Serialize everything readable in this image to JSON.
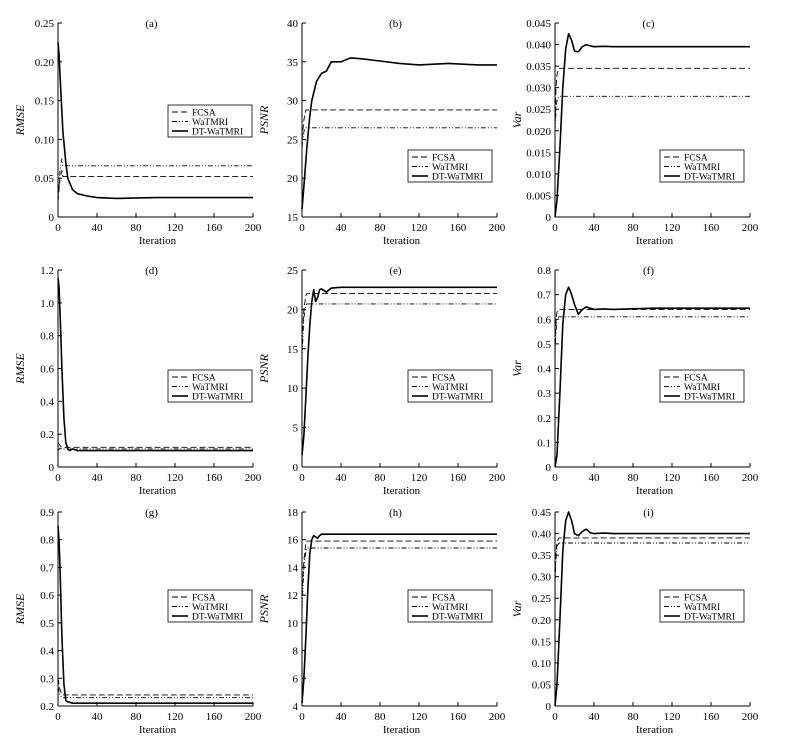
{
  "chart_data": [
    {
      "type": "line",
      "panel": "(a)",
      "ylabel": "RMSE",
      "xlabel": "Iteration",
      "xlim": [
        0,
        200
      ],
      "ylim": [
        0,
        0.25
      ],
      "xticks": [
        "0",
        "40",
        "80",
        "120",
        "160",
        "200"
      ],
      "yticks": [
        "0",
        "0.05",
        "0.10",
        "0.15",
        "0.20",
        "0.25"
      ],
      "legend": "right-middle",
      "grid": false,
      "series": [
        {
          "name": "FCSA",
          "x": [
            0,
            2,
            4,
            5,
            8,
            200
          ],
          "y": [
            0.02,
            0.05,
            0.06,
            0.052,
            0.052,
            0.052
          ]
        },
        {
          "name": "WaTMRI",
          "x": [
            0,
            2,
            4,
            5,
            8,
            200
          ],
          "y": [
            0.02,
            0.06,
            0.075,
            0.066,
            0.066,
            0.066
          ]
        },
        {
          "name": "DT-WaTMRI",
          "x": [
            0,
            1,
            3,
            5,
            8,
            10,
            15,
            20,
            30,
            40,
            60,
            100,
            150,
            200
          ],
          "y": [
            0.225,
            0.21,
            0.16,
            0.11,
            0.07,
            0.05,
            0.035,
            0.03,
            0.027,
            0.025,
            0.024,
            0.025,
            0.025,
            0.025
          ]
        }
      ]
    },
    {
      "type": "line",
      "panel": "(b)",
      "ylabel": "PSNR",
      "xlabel": "Iteration",
      "xlim": [
        0,
        200
      ],
      "ylim": [
        15,
        40
      ],
      "xticks": [
        "0",
        "40",
        "80",
        "120",
        "160",
        "200"
      ],
      "yticks": [
        "15",
        "20",
        "25",
        "30",
        "35",
        "40"
      ],
      "legend": "bottom-right",
      "grid": false,
      "series": [
        {
          "name": "FCSA",
          "x": [
            0,
            2,
            4,
            5,
            8,
            200
          ],
          "y": [
            25,
            27.5,
            28.8,
            28.8,
            28.8,
            28.8
          ]
        },
        {
          "name": "WaTMRI",
          "x": [
            0,
            2,
            4,
            5,
            8,
            200
          ],
          "y": [
            24,
            26,
            26.5,
            26.5,
            26.5,
            26.5
          ]
        },
        {
          "name": "DT-WaTMRI",
          "x": [
            0,
            2,
            5,
            8,
            10,
            15,
            20,
            25,
            30,
            35,
            40,
            50,
            60,
            80,
            100,
            120,
            150,
            180,
            200
          ],
          "y": [
            16,
            19,
            24,
            28,
            30,
            32.5,
            33.5,
            33.8,
            35,
            35,
            35,
            35.5,
            35.4,
            35.1,
            34.8,
            34.6,
            34.8,
            34.6,
            34.6
          ]
        }
      ]
    },
    {
      "type": "line",
      "panel": "(c)",
      "ylabel": "Var",
      "xlabel": "Iteration",
      "xlim": [
        0,
        200
      ],
      "ylim": [
        0,
        0.045
      ],
      "xticks": [
        "0",
        "40",
        "80",
        "120",
        "160",
        "200"
      ],
      "yticks": [
        "0",
        "0.005",
        "0.010",
        "0.015",
        "0.020",
        "0.025",
        "0.030",
        "0.035",
        "0.040",
        "0.045"
      ],
      "legend": "bottom-right",
      "grid": false,
      "series": [
        {
          "name": "FCSA",
          "x": [
            0,
            1,
            2,
            4,
            5,
            200
          ],
          "y": [
            0.02,
            0.03,
            0.033,
            0.0345,
            0.0345,
            0.0345
          ]
        },
        {
          "name": "WaTMRI",
          "x": [
            0,
            1,
            2,
            4,
            5,
            200
          ],
          "y": [
            0.02,
            0.025,
            0.027,
            0.028,
            0.028,
            0.028
          ]
        },
        {
          "name": "DT-WaTMRI",
          "x": [
            0,
            2,
            5,
            8,
            11,
            14,
            17,
            20,
            24,
            28,
            32,
            36,
            40,
            50,
            60,
            100,
            150,
            200
          ],
          "y": [
            0.0,
            0.004,
            0.016,
            0.03,
            0.039,
            0.0425,
            0.041,
            0.0385,
            0.0383,
            0.0395,
            0.04,
            0.0397,
            0.0395,
            0.0396,
            0.0395,
            0.0395,
            0.0395,
            0.0395
          ]
        }
      ]
    },
    {
      "type": "line",
      "panel": "(d)",
      "ylabel": "RMSE",
      "xlabel": "Iteration",
      "xlim": [
        0,
        200
      ],
      "ylim": [
        0,
        1.2
      ],
      "xticks": [
        "0",
        "40",
        "80",
        "120",
        "160",
        "200"
      ],
      "yticks": [
        "0",
        "0.2",
        "0.4",
        "0.6",
        "0.8",
        "1.0",
        "1.2"
      ],
      "legend": "bottom-right",
      "grid": false,
      "series": [
        {
          "name": "FCSA",
          "x": [
            0,
            2,
            4,
            5,
            8,
            200
          ],
          "y": [
            0.15,
            0.13,
            0.12,
            0.12,
            0.12,
            0.12
          ]
        },
        {
          "name": "WaTMRI",
          "x": [
            0,
            2,
            4,
            5,
            8,
            200
          ],
          "y": [
            0.1,
            0.115,
            0.11,
            0.11,
            0.11,
            0.11
          ]
        },
        {
          "name": "DT-WaTMRI",
          "x": [
            0,
            1,
            2,
            4,
            6,
            8,
            10,
            12,
            15,
            20,
            30,
            40,
            80,
            200
          ],
          "y": [
            1.15,
            1.1,
            0.95,
            0.6,
            0.3,
            0.15,
            0.11,
            0.1,
            0.11,
            0.1,
            0.1,
            0.1,
            0.1,
            0.1
          ]
        }
      ]
    },
    {
      "type": "line",
      "panel": "(e)",
      "ylabel": "PSNR",
      "xlabel": "Iteration",
      "xlim": [
        0,
        200
      ],
      "ylim": [
        0,
        25
      ],
      "xticks": [
        "0",
        "40",
        "80",
        "120",
        "160",
        "200"
      ],
      "yticks": [
        "0",
        "5",
        "10",
        "15",
        "20",
        "25"
      ],
      "legend": "bottom-right",
      "grid": false,
      "series": [
        {
          "name": "FCSA",
          "x": [
            0,
            2,
            4,
            5,
            8,
            200
          ],
          "y": [
            16,
            20,
            21.8,
            22,
            22,
            22
          ]
        },
        {
          "name": "WaTMRI",
          "x": [
            0,
            2,
            4,
            5,
            8,
            200
          ],
          "y": [
            14,
            19,
            20.5,
            20.7,
            20.7,
            20.7
          ]
        },
        {
          "name": "DT-WaTMRI",
          "x": [
            0,
            2,
            4,
            6,
            8,
            10,
            12,
            14,
            16,
            18,
            20,
            25,
            30,
            40,
            60,
            100,
            150,
            200
          ],
          "y": [
            1.5,
            4,
            9,
            14,
            18,
            21,
            22.5,
            21,
            21.5,
            22.5,
            22.6,
            22.2,
            22.7,
            22.8,
            22.8,
            22.8,
            22.8,
            22.8
          ]
        }
      ]
    },
    {
      "type": "line",
      "panel": "(f)",
      "ylabel": "Var",
      "xlabel": "Iteration",
      "xlim": [
        0,
        200
      ],
      "ylim": [
        0,
        0.8
      ],
      "xticks": [
        "0",
        "40",
        "80",
        "120",
        "160",
        "200"
      ],
      "yticks": [
        "0",
        "0.1",
        "0.2",
        "0.3",
        "0.4",
        "0.5",
        "0.6",
        "0.7",
        "0.8"
      ],
      "legend": "bottom-right",
      "grid": false,
      "series": [
        {
          "name": "FCSA",
          "x": [
            0,
            1,
            2,
            4,
            5,
            200
          ],
          "y": [
            0.5,
            0.6,
            0.63,
            0.64,
            0.64,
            0.64
          ]
        },
        {
          "name": "WaTMRI",
          "x": [
            0,
            1,
            2,
            4,
            5,
            200
          ],
          "y": [
            0.45,
            0.55,
            0.6,
            0.61,
            0.61,
            0.61
          ]
        },
        {
          "name": "DT-WaTMRI",
          "x": [
            0,
            2,
            5,
            8,
            11,
            14,
            17,
            20,
            24,
            28,
            32,
            36,
            40,
            50,
            60,
            100,
            150,
            200
          ],
          "y": [
            0.0,
            0.05,
            0.3,
            0.58,
            0.7,
            0.73,
            0.7,
            0.66,
            0.62,
            0.64,
            0.65,
            0.645,
            0.64,
            0.642,
            0.64,
            0.645,
            0.645,
            0.645
          ]
        }
      ]
    },
    {
      "type": "line",
      "panel": "(g)",
      "ylabel": "RMSE",
      "xlabel": "Iteration",
      "xlim": [
        0,
        200
      ],
      "ylim": [
        0.2,
        0.9
      ],
      "xticks": [
        "0",
        "40",
        "80",
        "120",
        "160",
        "200"
      ],
      "yticks": [
        "0.2",
        "0.3",
        "0.4",
        "0.5",
        "0.6",
        "0.7",
        "0.8",
        "0.9"
      ],
      "legend": "bottom-right",
      "grid": false,
      "series": [
        {
          "name": "FCSA",
          "x": [
            0,
            2,
            4,
            5,
            8,
            200
          ],
          "y": [
            0.3,
            0.26,
            0.24,
            0.24,
            0.24,
            0.24
          ]
        },
        {
          "name": "WaTMRI",
          "x": [
            0,
            2,
            4,
            5,
            8,
            200
          ],
          "y": [
            0.27,
            0.24,
            0.23,
            0.23,
            0.23,
            0.23
          ]
        },
        {
          "name": "DT-WaTMRI",
          "x": [
            0,
            1,
            2,
            4,
            6,
            8,
            10,
            15,
            20,
            40,
            80,
            200
          ],
          "y": [
            0.85,
            0.8,
            0.7,
            0.45,
            0.28,
            0.22,
            0.215,
            0.21,
            0.21,
            0.21,
            0.21,
            0.21
          ]
        }
      ]
    },
    {
      "type": "line",
      "panel": "(h)",
      "ylabel": "PSNR",
      "xlabel": "Iteration",
      "xlim": [
        0,
        200
      ],
      "ylim": [
        4,
        18
      ],
      "xticks": [
        "0",
        "40",
        "80",
        "120",
        "160",
        "200"
      ],
      "yticks": [
        "4",
        "6",
        "8",
        "10",
        "12",
        "14",
        "16",
        "18"
      ],
      "legend": "bottom-right",
      "grid": false,
      "series": [
        {
          "name": "FCSA",
          "x": [
            0,
            2,
            4,
            5,
            8,
            200
          ],
          "y": [
            12,
            14.5,
            15.8,
            15.9,
            15.9,
            15.9
          ]
        },
        {
          "name": "WaTMRI",
          "x": [
            0,
            2,
            4,
            5,
            8,
            200
          ],
          "y": [
            11,
            14,
            15.2,
            15.4,
            15.4,
            15.4
          ]
        },
        {
          "name": "DT-WaTMRI",
          "x": [
            0,
            2,
            4,
            6,
            8,
            10,
            12,
            14,
            16,
            18,
            20,
            30,
            40,
            60,
            100,
            150,
            200
          ],
          "y": [
            4.2,
            6,
            9,
            12.5,
            15,
            16,
            16.3,
            16.2,
            16.1,
            16.3,
            16.4,
            16.4,
            16.4,
            16.4,
            16.4,
            16.4,
            16.4
          ]
        }
      ]
    },
    {
      "type": "line",
      "panel": "(i)",
      "ylabel": "Var",
      "xlabel": "Iteration",
      "xlim": [
        0,
        200
      ],
      "ylim": [
        0,
        0.45
      ],
      "xticks": [
        "0",
        "40",
        "80",
        "120",
        "160",
        "200"
      ],
      "yticks": [
        "0",
        "0.05",
        "0.10",
        "0.15",
        "0.20",
        "0.25",
        "0.30",
        "0.35",
        "0.40",
        "0.45"
      ],
      "legend": "bottom-right",
      "grid": false,
      "series": [
        {
          "name": "FCSA",
          "x": [
            0,
            1,
            2,
            4,
            5,
            200
          ],
          "y": [
            0.3,
            0.36,
            0.38,
            0.39,
            0.39,
            0.39
          ]
        },
        {
          "name": "WaTMRI",
          "x": [
            0,
            1,
            2,
            4,
            5,
            200
          ],
          "y": [
            0.28,
            0.34,
            0.37,
            0.378,
            0.378,
            0.378
          ]
        },
        {
          "name": "DT-WaTMRI",
          "x": [
            0,
            2,
            5,
            8,
            11,
            14,
            17,
            20,
            24,
            28,
            32,
            36,
            40,
            50,
            60,
            100,
            150,
            200
          ],
          "y": [
            0.0,
            0.05,
            0.2,
            0.36,
            0.43,
            0.45,
            0.43,
            0.4,
            0.395,
            0.405,
            0.41,
            0.402,
            0.4,
            0.401,
            0.4,
            0.4,
            0.4,
            0.4
          ]
        }
      ]
    }
  ],
  "style": {
    "line_color": "#000000",
    "series_dash": {
      "FCSA": "6,3",
      "WaTMRI": "5,2,1,2,1,2",
      "DT-WaTMRI": ""
    },
    "series_width": {
      "FCSA": 0.9,
      "WaTMRI": 0.9,
      "DT-WaTMRI": 1.6
    }
  }
}
